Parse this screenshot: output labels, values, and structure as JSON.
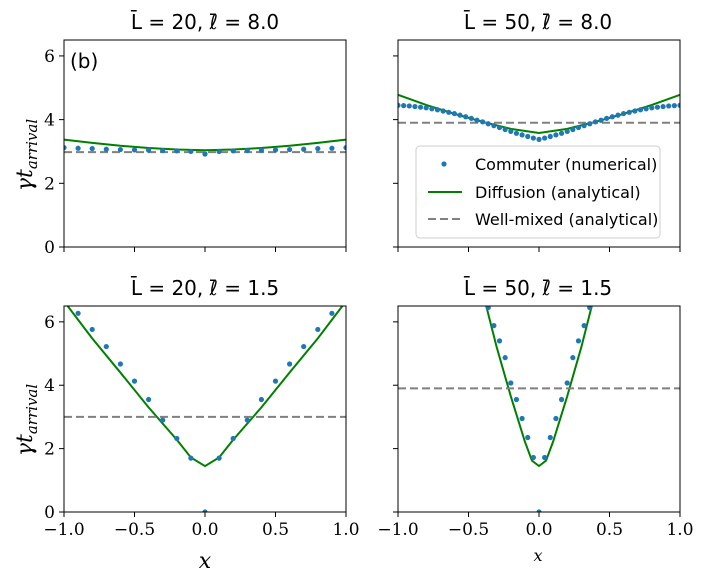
{
  "figure": {
    "panel_label": "(b)",
    "ylabel": "γt",
    "ylabel_sub": "arrival",
    "xlabel": "x",
    "legend": {
      "placement": "lower-center of top-right panel",
      "entries": [
        {
          "label": "Commuter (numerical)",
          "marker": "dot",
          "color": "#1f77b4"
        },
        {
          "label": "Diffusion (analytical)",
          "marker": "line",
          "color": "#008000"
        },
        {
          "label": "Well-mixed (analytical)",
          "marker": "dashed",
          "color": "#808080"
        }
      ]
    }
  },
  "chart_data": [
    {
      "type": "scatter",
      "title": "L̄ = 20, ℓ̄ = 8.0",
      "xlim": [
        -1.0,
        1.0
      ],
      "ylim": [
        0,
        6.5
      ],
      "xticks": [
        "−1.0",
        "−0.5",
        "0.0",
        "0.5",
        "1.0"
      ],
      "show_xticklabels": false,
      "yticks": [
        "0",
        "2",
        "4",
        "6"
      ],
      "show_yticklabels": true,
      "series": [
        {
          "kind": "scatter",
          "color": "#1f77b4",
          "x": [
            -1.0,
            -0.9,
            -0.8,
            -0.7,
            -0.6,
            -0.5,
            -0.4,
            -0.3,
            -0.2,
            -0.1,
            0.0,
            0.1,
            0.2,
            0.3,
            0.4,
            0.5,
            0.6,
            0.7,
            0.8,
            0.9,
            1.0
          ],
          "y": [
            3.12,
            3.1,
            3.09,
            3.07,
            3.06,
            3.05,
            3.04,
            3.03,
            3.02,
            3.0,
            2.92,
            3.0,
            3.02,
            3.03,
            3.04,
            3.05,
            3.06,
            3.07,
            3.09,
            3.1,
            3.12
          ]
        },
        {
          "kind": "line",
          "color": "#008000",
          "x": [
            -1.0,
            -0.8,
            -0.6,
            -0.4,
            -0.2,
            0.0,
            0.2,
            0.4,
            0.6,
            0.8,
            1.0
          ],
          "y": [
            3.37,
            3.27,
            3.18,
            3.11,
            3.06,
            3.04,
            3.06,
            3.11,
            3.18,
            3.27,
            3.37
          ]
        },
        {
          "kind": "hline",
          "color": "#808080",
          "y": 2.98
        }
      ]
    },
    {
      "type": "scatter",
      "title": "L̄ = 50, ℓ̄ = 8.0",
      "xlim": [
        -1.0,
        1.0
      ],
      "ylim": [
        0,
        6.5
      ],
      "xticks": [
        "−1.0",
        "−0.5",
        "0.0",
        "0.5",
        "1.0"
      ],
      "show_xticklabels": false,
      "yticks": [
        "0",
        "2",
        "4",
        "6"
      ],
      "show_yticklabels": false,
      "series": [
        {
          "kind": "scatter",
          "color": "#1f77b4",
          "x": [
            -1.0,
            -0.96,
            -0.92,
            -0.88,
            -0.84,
            -0.8,
            -0.76,
            -0.72,
            -0.68,
            -0.64,
            -0.6,
            -0.56,
            -0.52,
            -0.48,
            -0.44,
            -0.4,
            -0.36,
            -0.32,
            -0.28,
            -0.24,
            -0.2,
            -0.16,
            -0.12,
            -0.08,
            -0.04,
            0.0,
            0.04,
            0.08,
            0.12,
            0.16,
            0.2,
            0.24,
            0.28,
            0.32,
            0.36,
            0.4,
            0.44,
            0.48,
            0.52,
            0.56,
            0.6,
            0.64,
            0.68,
            0.72,
            0.76,
            0.8,
            0.84,
            0.88,
            0.92,
            0.96,
            1.0
          ],
          "y": [
            4.45,
            4.44,
            4.43,
            4.41,
            4.39,
            4.37,
            4.34,
            4.31,
            4.27,
            4.23,
            4.19,
            4.14,
            4.09,
            4.04,
            3.98,
            3.93,
            3.87,
            3.81,
            3.75,
            3.69,
            3.63,
            3.57,
            3.52,
            3.47,
            3.42,
            3.38,
            3.42,
            3.47,
            3.52,
            3.57,
            3.63,
            3.69,
            3.75,
            3.81,
            3.87,
            3.93,
            3.98,
            4.04,
            4.09,
            4.14,
            4.19,
            4.23,
            4.27,
            4.31,
            4.34,
            4.37,
            4.39,
            4.41,
            4.43,
            4.44,
            4.45
          ]
        },
        {
          "kind": "line",
          "color": "#008000",
          "x": [
            -1.0,
            -0.8,
            -0.6,
            -0.4,
            -0.2,
            0.0,
            0.2,
            0.4,
            0.6,
            0.8,
            1.0
          ],
          "y": [
            4.78,
            4.46,
            4.18,
            3.93,
            3.71,
            3.58,
            3.71,
            3.93,
            4.18,
            4.46,
            4.78
          ]
        },
        {
          "kind": "hline",
          "color": "#808080",
          "y": 3.9
        }
      ]
    },
    {
      "type": "scatter",
      "title": "L̄ = 20, ℓ̄ = 1.5",
      "xlim": [
        -1.0,
        1.0
      ],
      "ylim": [
        0,
        6.5
      ],
      "xticks": [
        "−1.0",
        "−0.5",
        "0.0",
        "0.5",
        "1.0"
      ],
      "show_xticklabels": true,
      "yticks": [
        "0",
        "2",
        "4",
        "6"
      ],
      "show_yticklabels": true,
      "series": [
        {
          "kind": "scatter",
          "color": "#1f77b4",
          "x": [
            -0.9,
            -0.8,
            -0.7,
            -0.6,
            -0.5,
            -0.4,
            -0.3,
            -0.2,
            -0.1,
            0.0,
            0.1,
            0.2,
            0.3,
            0.4,
            0.5,
            0.6,
            0.7,
            0.8,
            0.9
          ],
          "y": [
            6.27,
            5.76,
            5.22,
            4.67,
            4.13,
            3.55,
            2.9,
            2.32,
            1.7,
            0.0,
            1.7,
            2.32,
            2.9,
            3.55,
            4.13,
            4.67,
            5.22,
            5.76,
            6.27
          ]
        },
        {
          "kind": "line",
          "color": "#008000",
          "x": [
            -1.0,
            -0.8,
            -0.6,
            -0.4,
            -0.2,
            -0.1,
            0.0,
            0.1,
            0.2,
            0.4,
            0.6,
            0.8,
            1.0
          ],
          "y": [
            6.65,
            5.48,
            4.4,
            3.3,
            2.28,
            1.72,
            1.45,
            1.72,
            2.28,
            3.3,
            4.4,
            5.48,
            6.65
          ]
        },
        {
          "kind": "hline",
          "color": "#808080",
          "y": 3.0
        }
      ]
    },
    {
      "type": "scatter",
      "title": "L̄ = 50, ℓ̄ = 1.5",
      "xlim": [
        -1.0,
        1.0
      ],
      "ylim": [
        0,
        6.5
      ],
      "xticks": [
        "−1.0",
        "−0.5",
        "0.0",
        "0.5",
        "1.0"
      ],
      "show_xticklabels": true,
      "yticks": [
        "0",
        "2",
        "4",
        "6"
      ],
      "show_yticklabels": false,
      "series": [
        {
          "kind": "scatter",
          "color": "#1f77b4",
          "x": [
            -0.36,
            -0.32,
            -0.28,
            -0.24,
            -0.2,
            -0.16,
            -0.12,
            -0.08,
            -0.04,
            0.0,
            0.04,
            0.08,
            0.12,
            0.16,
            0.2,
            0.24,
            0.28,
            0.32,
            0.36
          ],
          "y": [
            6.45,
            5.88,
            5.4,
            4.87,
            4.07,
            3.55,
            2.95,
            2.35,
            1.72,
            0.0,
            1.72,
            2.35,
            2.95,
            3.55,
            4.07,
            4.87,
            5.4,
            5.88,
            6.45
          ]
        },
        {
          "kind": "line",
          "color": "#008000",
          "x": [
            -0.38,
            -0.3,
            -0.2,
            -0.1,
            -0.05,
            0.0,
            0.05,
            0.1,
            0.2,
            0.3,
            0.38
          ],
          "y": [
            6.6,
            5.2,
            3.65,
            2.22,
            1.62,
            1.45,
            1.62,
            2.22,
            3.65,
            5.2,
            6.6
          ]
        },
        {
          "kind": "hline",
          "color": "#808080",
          "y": 3.9
        }
      ]
    }
  ]
}
